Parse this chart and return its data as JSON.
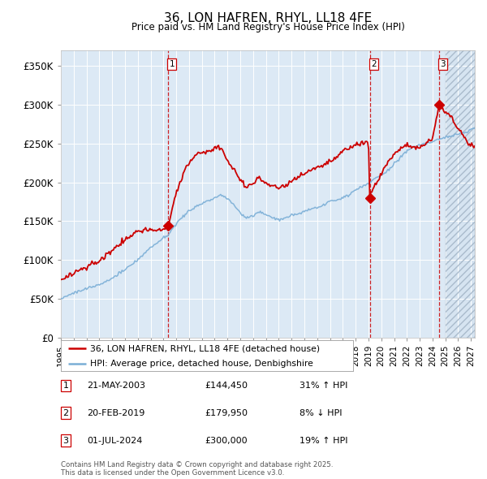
{
  "title": "36, LON HAFREN, RHYL, LL18 4FE",
  "subtitle": "Price paid vs. HM Land Registry's House Price Index (HPI)",
  "ylabel_ticks": [
    "£0",
    "£50K",
    "£100K",
    "£150K",
    "£200K",
    "£250K",
    "£300K",
    "£350K"
  ],
  "ytick_values": [
    0,
    50000,
    100000,
    150000,
    200000,
    250000,
    300000,
    350000
  ],
  "ylim": [
    0,
    370000
  ],
  "xlim_start": 1995.0,
  "xlim_end": 2027.3,
  "legend_line1": "36, LON HAFREN, RHYL, LL18 4FE (detached house)",
  "legend_line2": "HPI: Average price, detached house, Denbighshire",
  "red_color": "#cc0000",
  "blue_color": "#7aaed6",
  "bg_color": "#dce9f5",
  "grid_color": "#ffffff",
  "vline_color": "#cc0000",
  "hatch_start": 2025.0,
  "sale1_x": 2003.38,
  "sale1_y": 144450,
  "sale1_label": "1",
  "sale2_x": 2019.12,
  "sale2_y": 179950,
  "sale2_label": "2",
  "sale3_x": 2024.5,
  "sale3_y": 300000,
  "sale3_label": "3",
  "table_entries": [
    {
      "num": "1",
      "date": "21-MAY-2003",
      "price": "£144,450",
      "change": "31% ↑ HPI"
    },
    {
      "num": "2",
      "date": "20-FEB-2019",
      "price": "£179,950",
      "change": "8% ↓ HPI"
    },
    {
      "num": "3",
      "date": "01-JUL-2024",
      "price": "£300,000",
      "change": "19% ↑ HPI"
    }
  ],
  "footer": "Contains HM Land Registry data © Crown copyright and database right 2025.\nThis data is licensed under the Open Government Licence v3.0."
}
